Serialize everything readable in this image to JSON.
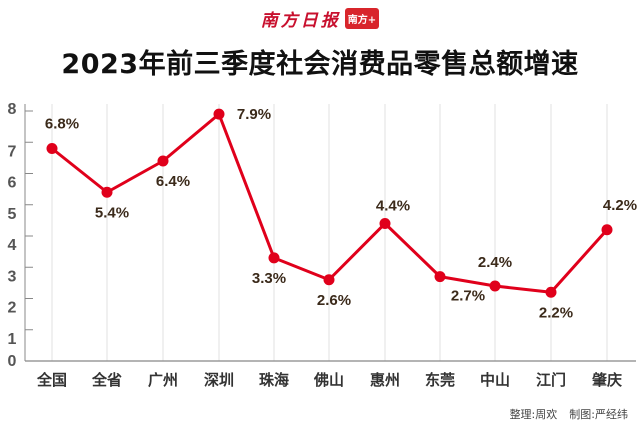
{
  "logo": {
    "text": "南方日报",
    "badge": "南方+"
  },
  "chart_data": {
    "type": "line",
    "title": "2023年前三季度社会消费品零售总额增速",
    "categories": [
      "全国",
      "全省",
      "广州",
      "深圳",
      "珠海",
      "佛山",
      "惠州",
      "东莞",
      "中山",
      "江门",
      "肇庆"
    ],
    "series": [
      {
        "name": "增速",
        "values": [
          6.8,
          5.4,
          6.4,
          7.9,
          3.3,
          2.6,
          4.4,
          2.7,
          2.4,
          2.2,
          4.2
        ]
      }
    ],
    "data_labels": [
      "6.8%",
      "5.4%",
      "6.4%",
      "7.9%",
      "3.3%",
      "2.6%",
      "4.4%",
      "2.7%",
      "2.4%",
      "2.2%",
      "4.2%"
    ],
    "yticks": [
      "0",
      "1",
      "2",
      "3",
      "4",
      "5",
      "6",
      "7",
      "8"
    ],
    "ylim": [
      0,
      8
    ],
    "xlabel": "",
    "ylabel": "",
    "grid": "vertical",
    "line_color": "#e0001b",
    "label_color": "#3b2a1a"
  },
  "credits": {
    "editor": "整理:周欢",
    "designer": "制图:严经纬"
  }
}
